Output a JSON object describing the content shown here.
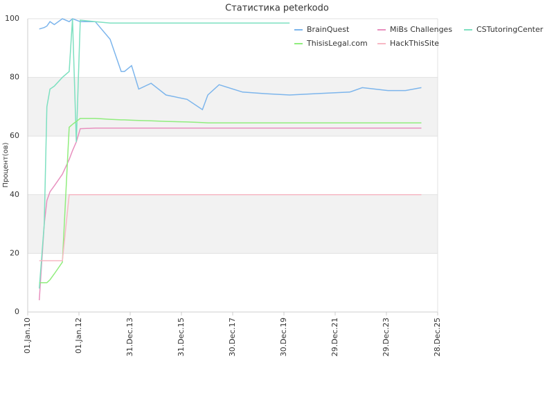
{
  "chart_data": {
    "type": "line",
    "title": "Статистика peterkodo",
    "y_label": "Процент(ов)",
    "x": [
      "2010-06-15",
      "2010-08-25",
      "2010-10-01",
      "2010-11-15",
      "2011-01-15",
      "2011-05-10",
      "2011-08-15",
      "2011-10-01",
      "2011-11-25",
      "2012-01-20",
      "2012-08-20",
      "2013-03-20",
      "2013-08-25",
      "2013-10-10",
      "2014-01-20",
      "2014-05-01",
      "2014-10-25",
      "2015-05-25",
      "2016-03-20",
      "2016-10-25",
      "2017-01-10",
      "2017-06-20",
      "2018-05-20",
      "2019-03-10",
      "2020-03-20",
      "2021-05-10",
      "2022-07-25",
      "2023-01-20",
      "2024-01-20",
      "2024-09-25",
      "2025-05-10"
    ],
    "series": [
      {
        "name": "BrainQuest",
        "color": "#7cb5ec",
        "values": [
          96.5,
          97,
          97.5,
          99,
          98,
          100,
          99,
          100,
          99.5,
          99,
          99,
          93,
          82,
          82,
          84,
          76,
          78,
          74,
          72.5,
          69,
          74,
          77.5,
          75,
          74.5,
          74,
          74.5,
          75,
          76.5,
          75.5,
          75.5,
          76.5
        ]
      },
      {
        "name": "MiBs Challenges",
        "color": "#e890bf",
        "values": [
          4,
          30,
          38,
          41,
          43,
          47,
          52,
          55,
          58,
          62.5,
          62.7,
          62.7,
          62.7,
          62.7,
          62.7,
          62.7,
          62.7,
          62.7,
          62.7,
          62.7,
          62.7,
          62.7,
          62.7,
          62.7,
          62.7,
          62.7,
          62.7,
          62.7,
          62.7,
          62.7,
          62.7
        ]
      },
      {
        "name": "CSTutoringCenter",
        "color": "#7de0c0",
        "values": [
          8,
          30,
          70,
          76,
          77,
          80,
          82,
          100,
          58,
          99.5,
          99,
          98.5,
          98.5,
          98.5,
          98.5,
          98.5,
          98.5,
          98.5,
          98.5,
          98.5,
          98.5,
          98.5,
          98.5,
          98.5,
          98.5,
          null,
          null,
          null,
          null,
          null,
          null
        ]
      },
      {
        "name": "ThisisLegal.com",
        "color": "#90ed7d",
        "values": [
          10,
          10,
          10,
          11,
          13,
          17,
          63,
          64,
          65,
          66,
          66,
          65.7,
          65.5,
          65.5,
          65.4,
          65.3,
          65.2,
          65,
          64.8,
          64.6,
          64.5,
          64.5,
          64.5,
          64.5,
          64.5,
          64.5,
          64.5,
          64.5,
          64.5,
          64.5,
          64.5
        ]
      },
      {
        "name": "HackThisSite",
        "color": "#f7b8c4",
        "values": [
          17.5,
          17.5,
          17.5,
          17.5,
          17.5,
          17.5,
          40,
          40,
          40,
          40,
          40,
          40,
          40,
          40,
          40,
          40,
          40,
          40,
          40,
          40,
          40,
          40,
          40,
          40,
          40,
          40,
          40,
          40,
          40,
          40,
          40
        ]
      }
    ],
    "xlim": [
      "2010-01-01",
      "2025-12-28"
    ],
    "xticks": [
      {
        "value": "2010-01-01",
        "label": "01.Jan.10"
      },
      {
        "value": "2012-01-01",
        "label": "01.Jan.12"
      },
      {
        "value": "2013-12-31",
        "label": "31.Dec.13"
      },
      {
        "value": "2015-12-31",
        "label": "31.Dec.15"
      },
      {
        "value": "2017-12-30",
        "label": "30.Dec.17"
      },
      {
        "value": "2019-12-30",
        "label": "30.Dec.19"
      },
      {
        "value": "2021-12-29",
        "label": "29.Dec.21"
      },
      {
        "value": "2023-12-29",
        "label": "29.Dec.23"
      },
      {
        "value": "2025-12-28",
        "label": "28.Dec.25"
      }
    ],
    "ylim": [
      0,
      100
    ],
    "yticks": [
      0,
      20,
      40,
      60,
      80,
      100
    ],
    "grid": true,
    "band_color": "#f2f2f2",
    "legend": "top-right"
  }
}
